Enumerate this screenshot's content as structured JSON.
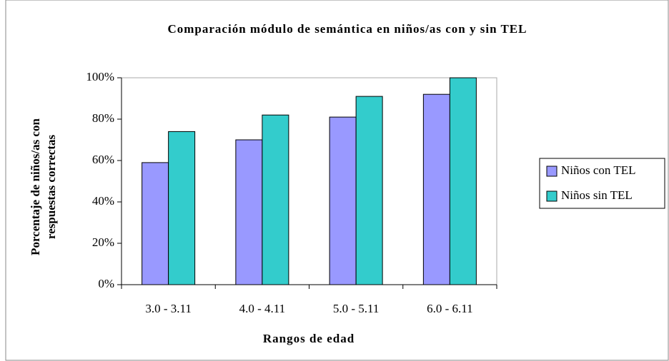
{
  "chart_data": {
    "type": "bar",
    "title": "Comparación módulo de semántica en niños/as con y sin TEL",
    "xlabel": "Rangos de edad",
    "ylabel": [
      "Porcentaje de niños/as con",
      "respuestas correctas"
    ],
    "categories": [
      "3.0 - 3.11",
      "4.0 - 4.11",
      "5.0 - 5.11",
      "6.0 - 6.11"
    ],
    "series": [
      {
        "name": "Niños con TEL",
        "color": "#9999ff",
        "values": [
          59,
          70,
          81,
          92
        ]
      },
      {
        "name": "Niños sin TEL",
        "color": "#33cccc",
        "values": [
          74,
          82,
          91,
          100
        ]
      }
    ],
    "ylim": [
      0,
      100
    ],
    "yticks": [
      {
        "value": 0,
        "label": "0%"
      },
      {
        "value": 20,
        "label": "20%"
      },
      {
        "value": 40,
        "label": "40%"
      },
      {
        "value": 60,
        "label": "60%"
      },
      {
        "value": 80,
        "label": "80%"
      },
      {
        "value": 100,
        "label": "100%"
      }
    ],
    "legend": "right"
  }
}
